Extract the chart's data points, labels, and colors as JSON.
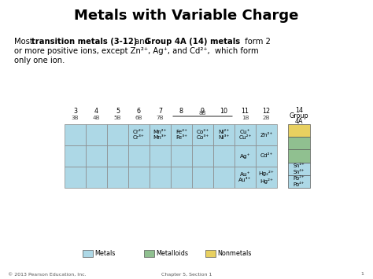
{
  "title": "Metals with Variable Charge",
  "colors": {
    "metal": "#add8e6",
    "metalloid": "#90c090",
    "nonmetal": "#e8d060",
    "background": "#ffffff"
  },
  "footer": "© 2013 Pearson Education, Inc.",
  "chapter": "Chapter 5, Section 1",
  "page": "1",
  "groups_num": [
    "3",
    "4",
    "5",
    "6",
    "7",
    "8",
    "9",
    "10",
    "11",
    "12"
  ],
  "groups_let": [
    "3B",
    "4B",
    "5B",
    "6B",
    "7B",
    "",
    "",
    "",
    "1B",
    "2B"
  ],
  "cell_texts": {
    "0,3": "Cr²⁺\nCr³⁺",
    "0,4": "Mn²⁺\nMn³⁺",
    "0,5": "Fe²⁺\nFe³⁺",
    "0,6": "Co²⁺\nCo³⁺",
    "0,7": "Ni²⁺\nNi³⁺",
    "0,8": "Cu⁺\nCu²⁺",
    "0,9": "Zn²⁺",
    "1,8": "Ag⁺",
    "1,9": "Cd²⁺",
    "2,8": "Au⁺\nAu³⁺",
    "2,9": "Hg₂²⁺\nHg²⁺"
  },
  "g14_cells": [
    {
      "color_key": "nonmetal",
      "text": ""
    },
    {
      "color_key": "metalloid",
      "text": ""
    },
    {
      "color_key": "metalloid",
      "text": ""
    },
    {
      "color_key": "metal",
      "text": "Sn²⁺\nSn⁴⁺"
    },
    {
      "color_key": "metal",
      "text": "Pb²⁺\nPb⁴⁺"
    }
  ],
  "legend": [
    {
      "label": "Metals",
      "color_key": "metal"
    },
    {
      "label": "Metalloids",
      "color_key": "metalloid"
    },
    {
      "label": "Nonmetals",
      "color_key": "nonmetal"
    }
  ]
}
